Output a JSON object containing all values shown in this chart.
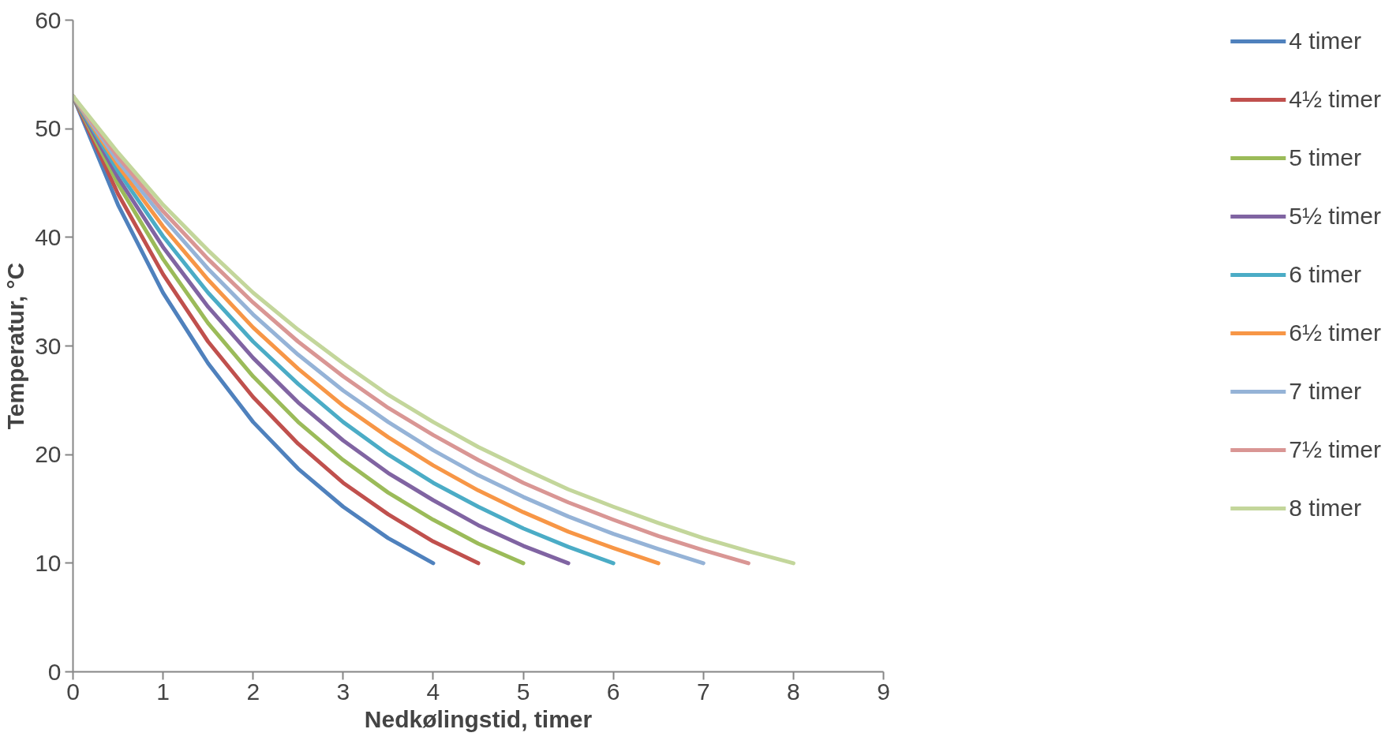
{
  "chart_data": {
    "type": "line",
    "xlabel": "Nedkølingstid, timer",
    "ylabel": "Temperatur, °C",
    "xlim": [
      0,
      9
    ],
    "ylim": [
      0,
      60
    ],
    "xticks": [
      0,
      1,
      2,
      3,
      4,
      5,
      6,
      7,
      8,
      9
    ],
    "yticks": [
      0,
      10,
      20,
      30,
      40,
      50,
      60
    ],
    "grid": false,
    "legend": "right",
    "marker": "none",
    "line_style": "solid",
    "series": [
      {
        "name": "4 timer",
        "color": "#4f81bd",
        "x": [
          0,
          0.5,
          1,
          1.5,
          2,
          2.5,
          3,
          3.5,
          4
        ],
        "values": [
          53,
          43.0,
          34.9,
          28.4,
          23.0,
          18.7,
          15.2,
          12.3,
          10.0
        ]
      },
      {
        "name": "4½ timer",
        "color": "#c0504d",
        "x": [
          0,
          0.5,
          1,
          1.5,
          2,
          2.5,
          3,
          3.5,
          4,
          4.5
        ],
        "values": [
          53,
          44.0,
          36.6,
          30.4,
          25.3,
          21.0,
          17.4,
          14.5,
          12.0,
          10.0
        ]
      },
      {
        "name": "5 timer",
        "color": "#9bbb59",
        "x": [
          0,
          0.5,
          1,
          1.5,
          2,
          2.5,
          3,
          3.5,
          4,
          4.5,
          5
        ],
        "values": [
          53,
          44.9,
          38.0,
          32.1,
          27.2,
          23.0,
          19.5,
          16.5,
          14.0,
          11.8,
          10.0
        ]
      },
      {
        "name": "5½ timer",
        "color": "#8064a2",
        "x": [
          0,
          0.5,
          1,
          1.5,
          2,
          2.5,
          3,
          3.5,
          4,
          4.5,
          5,
          5.5
        ],
        "values": [
          53,
          45.5,
          39.1,
          33.6,
          28.9,
          24.8,
          21.3,
          18.3,
          15.8,
          13.5,
          11.6,
          10.0
        ]
      },
      {
        "name": "6 timer",
        "color": "#4bacc6",
        "x": [
          0,
          0.5,
          1,
          1.5,
          2,
          2.5,
          3,
          3.5,
          4,
          4.5,
          5,
          5.5,
          6
        ],
        "values": [
          53,
          46.1,
          40.1,
          34.9,
          30.4,
          26.5,
          23.0,
          20.0,
          17.4,
          15.2,
          13.2,
          11.5,
          10.0
        ]
      },
      {
        "name": "6½ timer",
        "color": "#f79646",
        "x": [
          0,
          0.5,
          1,
          1.5,
          2,
          2.5,
          3,
          3.5,
          4,
          4.5,
          5,
          5.5,
          6,
          6.5
        ],
        "values": [
          53,
          46.6,
          41.0,
          36.1,
          31.7,
          27.9,
          24.5,
          21.6,
          19.0,
          16.7,
          14.7,
          12.9,
          11.4,
          10.0
        ]
      },
      {
        "name": "7 timer",
        "color": "#95b3d7",
        "x": [
          0,
          0.5,
          1,
          1.5,
          2,
          2.5,
          3,
          3.5,
          4,
          4.5,
          5,
          5.5,
          6,
          6.5,
          7
        ],
        "values": [
          53,
          47.0,
          41.8,
          37.1,
          32.9,
          29.2,
          25.9,
          23.0,
          20.4,
          18.1,
          16.1,
          14.3,
          12.7,
          11.3,
          10.0
        ]
      },
      {
        "name": "7½ timer",
        "color": "#d99694",
        "x": [
          0,
          0.5,
          1,
          1.5,
          2,
          2.5,
          3,
          3.5,
          4,
          4.5,
          5,
          5.5,
          6,
          6.5,
          7,
          7.5
        ],
        "values": [
          53,
          47.4,
          42.4,
          38.0,
          34.0,
          30.4,
          27.2,
          24.3,
          21.8,
          19.5,
          17.4,
          15.6,
          14.0,
          12.5,
          11.2,
          10.0
        ]
      },
      {
        "name": "8 timer",
        "color": "#c3d69b",
        "x": [
          0,
          0.5,
          1,
          1.5,
          2,
          2.5,
          3,
          3.5,
          4,
          4.5,
          5,
          5.5,
          6,
          6.5,
          7,
          7.5,
          8
        ],
        "values": [
          53,
          47.8,
          43.0,
          38.8,
          34.9,
          31.5,
          28.4,
          25.5,
          23.0,
          20.7,
          18.7,
          16.8,
          15.2,
          13.7,
          12.3,
          11.1,
          10.0
        ]
      }
    ]
  }
}
